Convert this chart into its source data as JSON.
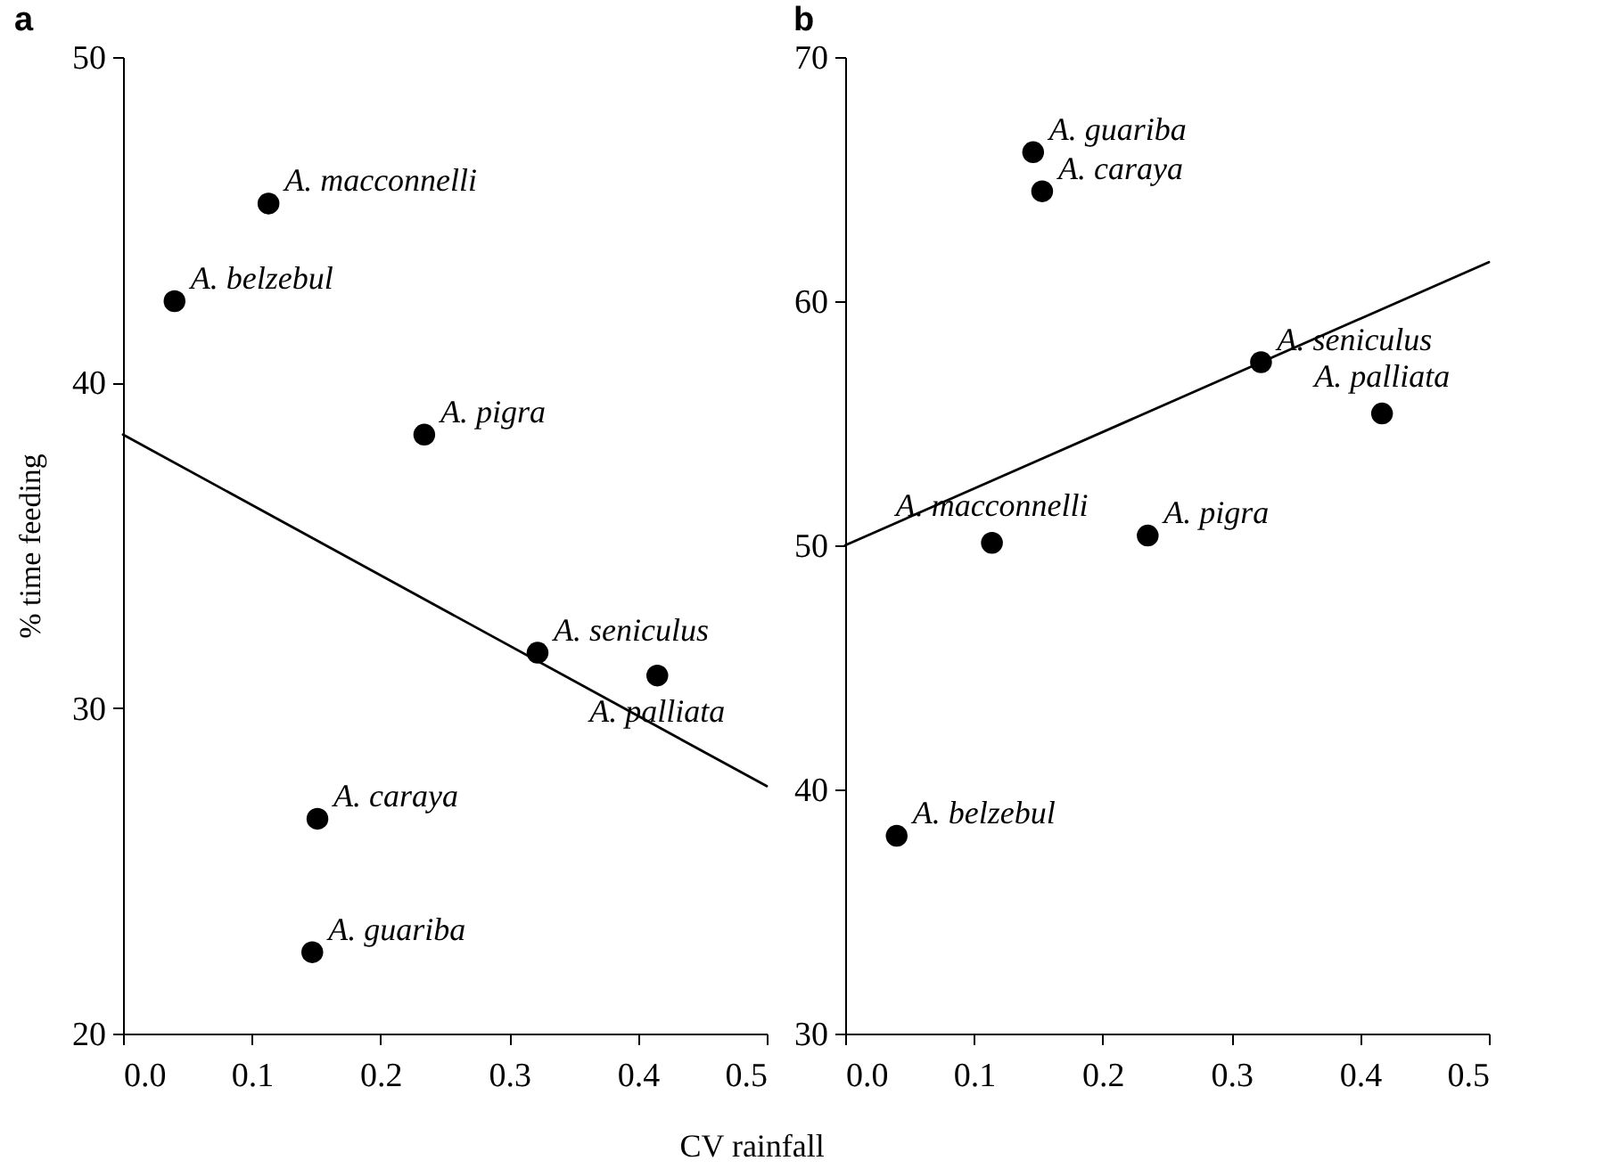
{
  "chart_data": [
    {
      "type": "scatter",
      "title": "a",
      "xlabel": "CV rainfall",
      "ylabel": "% time feeding",
      "grid": false,
      "xlim": [
        0,
        0.5
      ],
      "xticks": [
        {
          "value": 0,
          "label": "0.0"
        },
        0.1,
        0.2,
        0.3,
        0.4,
        0.5
      ],
      "ylim": [
        20,
        50
      ],
      "yticks": [
        20,
        30,
        40,
        50
      ],
      "series": [
        {
          "marker": "circle",
          "color": "#000000",
          "x": [
            0.113,
            0.04,
            0.234,
            0.322,
            0.415,
            0.151,
            0.147
          ],
          "values": [
            45.5,
            42.5,
            38.4,
            31.7,
            31.0,
            26.6,
            22.5
          ]
        },
        {
          "type": "line",
          "color": "#000000",
          "x": [
            0,
            0.5
          ],
          "values": [
            38.4,
            27.6
          ]
        }
      ],
      "annotations": [
        {
          "text": "A. macconnelli",
          "x": 0.113,
          "y": 45.5
        },
        {
          "text": "A. belzebul",
          "x": 0.04,
          "y": 42.5
        },
        {
          "text": "A. pigra",
          "x": 0.234,
          "y": 38.4
        },
        {
          "text": "A. seniculus",
          "x": 0.322,
          "y": 31.7
        },
        {
          "text": "A. palliata",
          "x": 0.415,
          "y": 31.0
        },
        {
          "text": "A. caraya",
          "x": 0.151,
          "y": 26.6
        },
        {
          "text": "A. guariba",
          "x": 0.147,
          "y": 22.5
        }
      ]
    },
    {
      "type": "scatter",
      "title": "b",
      "grid": false,
      "xlim": [
        0,
        0.5
      ],
      "xticks": [
        {
          "value": 0,
          "label": "0.0"
        },
        0.1,
        0.2,
        0.3,
        0.4,
        0.5
      ],
      "ylim": [
        30,
        70
      ],
      "yticks": [
        30,
        40,
        50,
        60,
        70
      ],
      "series": [
        {
          "marker": "circle",
          "color": "#000000",
          "x": [
            0.146,
            0.153,
            0.323,
            0.417,
            0.235,
            0.114,
            0.04
          ],
          "values": [
            66.1,
            64.5,
            57.5,
            55.4,
            50.4,
            50.1,
            38.1
          ]
        },
        {
          "type": "line",
          "color": "#000000",
          "x": [
            0,
            0.5
          ],
          "values": [
            50.0,
            61.6
          ]
        }
      ],
      "annotations": [
        {
          "text": "A. guariba",
          "x": 0.146,
          "y": 66.1
        },
        {
          "text": "A. caraya",
          "x": 0.153,
          "y": 64.5
        },
        {
          "text": "A. seniculus",
          "x": 0.323,
          "y": 57.5
        },
        {
          "text": "A. palliata",
          "x": 0.417,
          "y": 55.4
        },
        {
          "text": "A. pigra",
          "x": 0.235,
          "y": 50.4
        },
        {
          "text": "A. macconnelli",
          "x": 0.114,
          "y": 50.1
        },
        {
          "text": "A. belzebul",
          "x": 0.04,
          "y": 38.1
        }
      ]
    }
  ]
}
